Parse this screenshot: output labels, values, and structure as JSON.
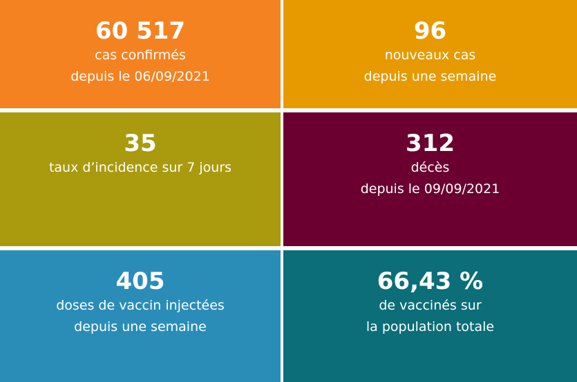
{
  "tiles": [
    {
      "value": "60 517",
      "line1": "cas confirmés",
      "line2": "depuis le 06/09/2021",
      "color": "#F58220"
    },
    {
      "value": "96",
      "line1": "nouveaux cas",
      "line2": "depuis une semaine",
      "color": "#E69A00"
    },
    {
      "value": "35",
      "line1": "taux d’incidence sur 7 jours",
      "line2": "",
      "color": "#A99A0E"
    },
    {
      "value": "312",
      "line1": "décès",
      "line2": "depuis le 09/09/2021",
      "color": "#6B0030"
    },
    {
      "value": "405",
      "line1": "doses de vaccin injectées",
      "line2": "depuis une semaine",
      "color": "#2A8DB8"
    },
    {
      "value": "66,43 %",
      "line1": "de vaccinés sur",
      "line2": "la population totale",
      "color": "#0B6E78"
    }
  ]
}
